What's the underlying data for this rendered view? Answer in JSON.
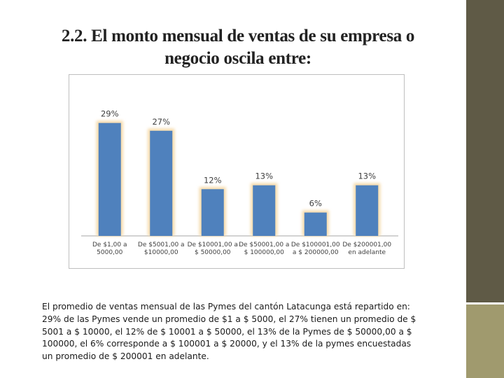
{
  "slide": {
    "title_line1": "2.2. El monto mensual de ventas de su empresa o",
    "title_line2": "negocio oscila entre:",
    "caption": "El promedio de ventas mensual de las Pymes del cantón Latacunga está repartido en:   29% de las Pymes vende un promedio de $1 a $ 5000, el 27% tienen un promedio de $ 5001 a $ 10000, el 12% de $ 10001 a $ 50000, el 13% de la Pymes de $ 50000,00 a $ 100000, el 6% corresponde a $ 100001 a $ 20000, y el 13% de la pymes encuestadas un promedio de $ 200001 en adelante."
  },
  "colors": {
    "bar": "#4f81bd",
    "bar_glow": "#f5d9a8",
    "axis": "#a6a6a6",
    "label": "#404040"
  },
  "chart_data": {
    "type": "bar",
    "title": "",
    "xlabel": "",
    "ylabel": "",
    "ylim": [
      0,
      32
    ],
    "grid": false,
    "legend": "none",
    "categories": [
      [
        "De $1,00 a",
        "5000,00"
      ],
      [
        "De $5001,00 a",
        "$10000,00"
      ],
      [
        "De $10001,00 a",
        "$ 50000,00"
      ],
      [
        "De $50001,00 a",
        "$ 100000,00"
      ],
      [
        "De $100001,00",
        "a $ 200000,00"
      ],
      [
        "De $200001,00",
        "en adelante"
      ]
    ],
    "values": [
      29,
      27,
      12,
      13,
      6,
      13
    ],
    "data_labels": [
      "29%",
      "27%",
      "12%",
      "13%",
      "6%",
      "13%"
    ]
  }
}
